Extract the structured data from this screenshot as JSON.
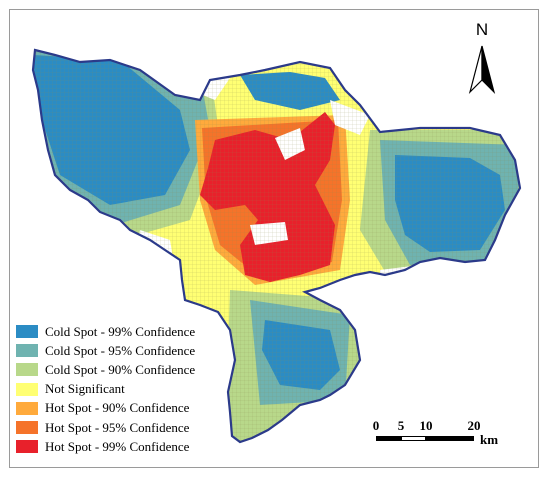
{
  "map": {
    "north_label": "N",
    "legend": [
      {
        "label": "Cold Spot - 99% Confidence",
        "color": "#2b8cc4"
      },
      {
        "label": "Cold Spot - 95% Confidence",
        "color": "#6fb3b0"
      },
      {
        "label": "Cold Spot - 90% Confidence",
        "color": "#b8d88a"
      },
      {
        "label": "Not Significant",
        "color": "#ffff73"
      },
      {
        "label": "Hot Spot - 90% Confidence",
        "color": "#ffaa3c"
      },
      {
        "label": "Hot Spot - 95% Confidence",
        "color": "#f5732a"
      },
      {
        "label": "Hot Spot - 99% Confidence",
        "color": "#e8212b"
      }
    ],
    "scale": {
      "ticks": [
        "0",
        "5",
        "10",
        "20"
      ],
      "unit": "km"
    },
    "colors": {
      "boundary": "#2b3a8a",
      "grid": "#9a9a60"
    }
  }
}
